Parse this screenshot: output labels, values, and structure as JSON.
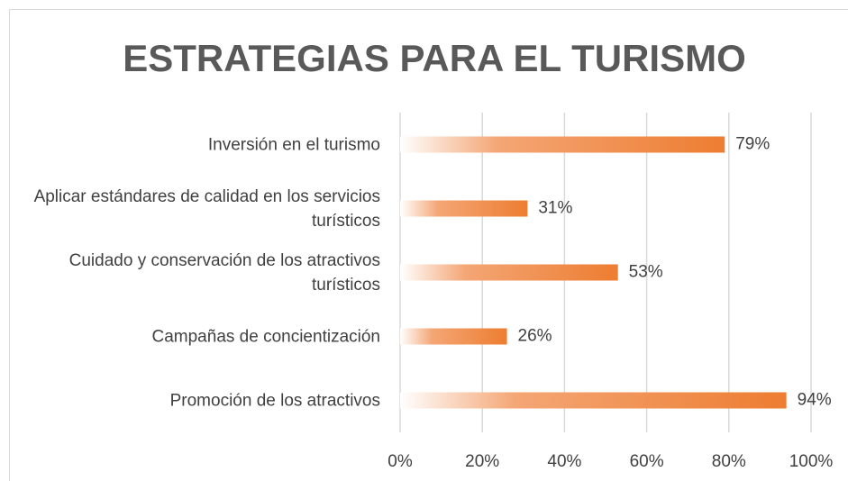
{
  "chart_data": {
    "type": "bar",
    "orientation": "horizontal",
    "title": "ESTRATEGIAS PARA EL TURISMO",
    "categories": [
      "Inversión en el turismo",
      "Aplicar estándares de calidad en los servicios turísticos",
      "Cuidado y conservación de los atractivos turísticos",
      "Campañas de concientización",
      "Promoción de los atractivos"
    ],
    "values": [
      79,
      31,
      53,
      26,
      94
    ],
    "value_labels": [
      "79%",
      "31%",
      "53%",
      "26%",
      "94%"
    ],
    "color": "#ed7d31",
    "xlim": [
      0,
      100
    ],
    "xticks": [
      {
        "value": 0,
        "label": "0%"
      },
      {
        "value": 20,
        "label": "20%"
      },
      {
        "value": 40,
        "label": "40%"
      },
      {
        "value": 60,
        "label": "60%"
      },
      {
        "value": 80,
        "label": "80%"
      },
      {
        "value": 100,
        "label": "100%"
      }
    ],
    "grid": true
  }
}
